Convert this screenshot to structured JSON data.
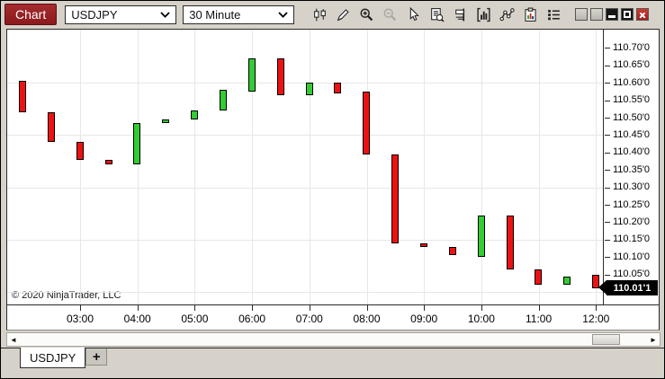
{
  "window": {
    "title_label": "Chart"
  },
  "toolbar": {
    "instrument": "USDJPY",
    "interval": "30 Minute",
    "icon_buttons": [
      "chart-style",
      "draw",
      "zoom-in",
      "zoom-out",
      "cursor",
      "data-box",
      "chart-trader",
      "indicators",
      "drawing-tools",
      "strategies",
      "properties"
    ]
  },
  "chart_data": {
    "type": "candlestick",
    "symbol": "USDJPY",
    "interval": "30 Minute",
    "grid": "on",
    "legend_position": "none",
    "x_axis": {
      "labels": [
        "03:00",
        "04:00",
        "05:00",
        "06:00",
        "07:00",
        "08:00",
        "09:00",
        "10:00",
        "11:00",
        "12:00"
      ]
    },
    "y_axis": {
      "range": [
        109.98,
        110.73
      ],
      "ticks": [
        {
          "label": "110.70'0",
          "value": 110.7
        },
        {
          "label": "110.65'0",
          "value": 110.65
        },
        {
          "label": "110.60'0",
          "value": 110.6
        },
        {
          "label": "110.55'0",
          "value": 110.55
        },
        {
          "label": "110.50'0",
          "value": 110.5
        },
        {
          "label": "110.45'0",
          "value": 110.45
        },
        {
          "label": "110.40'0",
          "value": 110.4
        },
        {
          "label": "110.35'0",
          "value": 110.35
        },
        {
          "label": "110.30'0",
          "value": 110.3
        },
        {
          "label": "110.25'0",
          "value": 110.25
        },
        {
          "label": "110.20'0",
          "value": 110.2
        },
        {
          "label": "110.15'0",
          "value": 110.15
        },
        {
          "label": "110.10'0",
          "value": 110.1
        },
        {
          "label": "110.05'0",
          "value": 110.05
        }
      ],
      "gridline_prices": [
        110.6,
        110.45,
        110.3,
        110.15,
        110.0
      ]
    },
    "candles": [
      {
        "time": "02:00",
        "open": 110.605,
        "close": 110.515
      },
      {
        "time": "02:30",
        "open": 110.515,
        "close": 110.43
      },
      {
        "time": "03:00",
        "open": 110.43,
        "close": 110.38
      },
      {
        "time": "03:30",
        "open": 110.38,
        "close": 110.365
      },
      {
        "time": "04:00",
        "open": 110.365,
        "close": 110.485
      },
      {
        "time": "04:30",
        "open": 110.485,
        "close": 110.495
      },
      {
        "time": "05:00",
        "open": 110.495,
        "close": 110.52
      },
      {
        "time": "05:30",
        "open": 110.52,
        "close": 110.58
      },
      {
        "time": "06:00",
        "open": 110.575,
        "close": 110.67
      },
      {
        "time": "06:30",
        "open": 110.67,
        "close": 110.565
      },
      {
        "time": "07:00",
        "open": 110.565,
        "close": 110.6
      },
      {
        "time": "07:30",
        "open": 110.6,
        "close": 110.57
      },
      {
        "time": "08:00",
        "open": 110.575,
        "close": 110.395
      },
      {
        "time": "08:30",
        "open": 110.395,
        "close": 110.14
      },
      {
        "time": "09:00",
        "open": 110.14,
        "close": 110.128
      },
      {
        "time": "09:30",
        "open": 110.13,
        "close": 110.105
      },
      {
        "time": "10:00",
        "open": 110.1,
        "close": 110.22
      },
      {
        "time": "10:30",
        "open": 110.22,
        "close": 110.065
      },
      {
        "time": "11:00",
        "open": 110.065,
        "close": 110.02
      },
      {
        "time": "11:30",
        "open": 110.02,
        "close": 110.045
      },
      {
        "time": "12:00",
        "open": 110.05,
        "close": 110.011
      }
    ],
    "last_price": 110.011,
    "last_price_label": "110.01'1",
    "colors": {
      "up": "#33CC33",
      "down": "#EE1111",
      "grid": "#E7E7E7",
      "marker_bg": "#000000",
      "marker_text": "#FFFFFF"
    },
    "copyright": "© 2020 NinjaTrader, LLC"
  },
  "scrollbar": {
    "left_arrow": "◄",
    "right_arrow": "►"
  },
  "tabs": {
    "active": "USDJPY",
    "add_label": "+"
  }
}
